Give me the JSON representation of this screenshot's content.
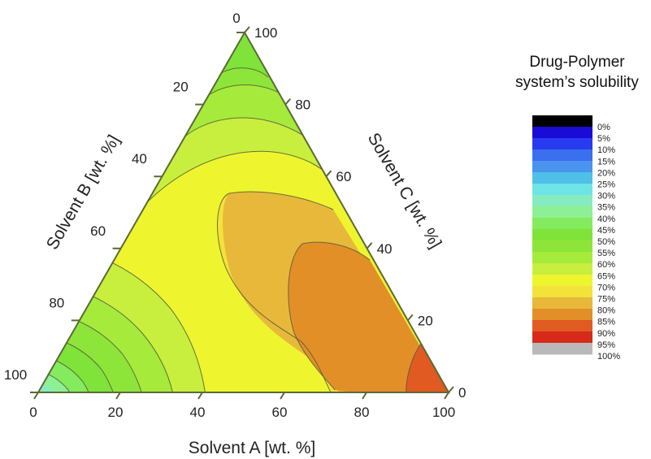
{
  "chart_data": {
    "type": "ternary-contour",
    "title": "",
    "axes": {
      "a": {
        "label": "Solvent A [wt. %]",
        "ticks": [
          "0",
          "20",
          "40",
          "60",
          "80",
          "100"
        ]
      },
      "b": {
        "label": "Solvent B [wt. %]",
        "ticks": [
          "100",
          "80",
          "60",
          "40",
          "20",
          "0"
        ]
      },
      "c": {
        "label": "Solvent C [wt. %]",
        "ticks": [
          "0",
          "20",
          "40",
          "60",
          "80",
          "100"
        ]
      }
    },
    "legend": {
      "title_line1": "Drug-Polymer",
      "title_line2": "system’s solubility",
      "labels": [
        "0%",
        "5%",
        "10%",
        "15%",
        "20%",
        "25%",
        "30%",
        "35%",
        "40%",
        "45%",
        "50%",
        "55%",
        "60%",
        "65%",
        "70%",
        "75%",
        "80%",
        "85%",
        "90%",
        "95%",
        "100%"
      ],
      "colors": [
        "#000000",
        "#1a0bd6",
        "#2a3bef",
        "#3a6ff0",
        "#4a93ee",
        "#4fc0e8",
        "#6ee4e6",
        "#86ecc0",
        "#8ef095",
        "#84ea5e",
        "#7fe33a",
        "#8ee53a",
        "#a6ea3c",
        "#c8ef3e",
        "#eef52e",
        "#f2e23a",
        "#e8b83a",
        "#e38f28",
        "#e05a22",
        "#d82a1a",
        "#b9b9b9"
      ],
      "placement": "right"
    }
  }
}
